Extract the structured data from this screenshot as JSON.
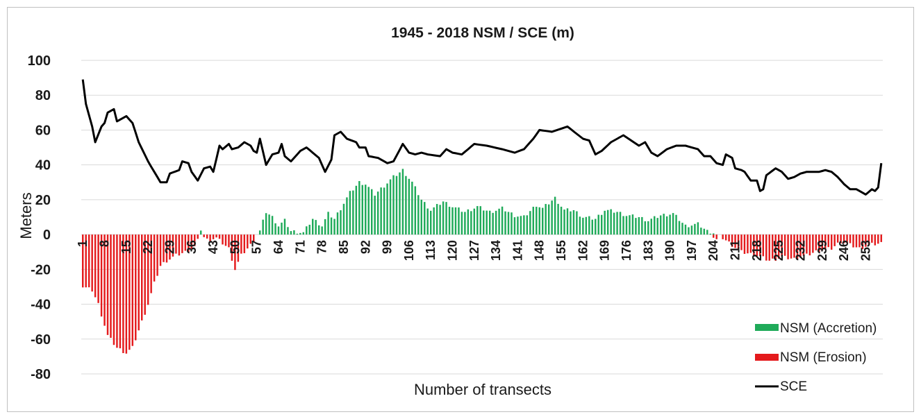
{
  "chart_data": {
    "type": "bar",
    "title": "1945 - 2018 NSM / SCE  (m)",
    "xlabel": "Number of transects",
    "ylabel": "Meters",
    "ylim": [
      -80,
      100
    ],
    "yticks": [
      -80,
      -60,
      -40,
      -20,
      0,
      20,
      40,
      60,
      80,
      100
    ],
    "xticks": [
      1,
      8,
      15,
      22,
      29,
      36,
      43,
      50,
      57,
      64,
      71,
      78,
      85,
      92,
      99,
      106,
      113,
      120,
      127,
      134,
      141,
      148,
      155,
      162,
      169,
      176,
      183,
      190,
      197,
      204,
      211,
      218,
      225,
      232,
      239,
      246,
      253
    ],
    "x_range": [
      1,
      258
    ],
    "grid": true,
    "legend_position": "bottom-right",
    "colors": {
      "accretion": "#1faa59",
      "erosion": "#e41a1c",
      "sce": "#000000",
      "grid": "#d9d9d9"
    },
    "series": [
      {
        "name": "NSM (Accretion)",
        "type": "bar",
        "keypoints": [
          [
            1,
            0
          ],
          [
            38,
            0
          ],
          [
            39,
            3
          ],
          [
            40,
            0
          ],
          [
            57,
            0
          ],
          [
            58,
            2
          ],
          [
            60,
            13
          ],
          [
            62,
            10
          ],
          [
            64,
            5
          ],
          [
            66,
            8
          ],
          [
            68,
            2
          ],
          [
            72,
            1
          ],
          [
            75,
            9
          ],
          [
            78,
            5
          ],
          [
            80,
            12
          ],
          [
            82,
            9
          ],
          [
            85,
            18
          ],
          [
            87,
            24
          ],
          [
            90,
            30
          ],
          [
            92,
            29
          ],
          [
            95,
            23
          ],
          [
            98,
            28
          ],
          [
            101,
            33
          ],
          [
            104,
            37
          ],
          [
            107,
            30
          ],
          [
            110,
            20
          ],
          [
            113,
            14
          ],
          [
            117,
            19
          ],
          [
            120,
            16
          ],
          [
            124,
            13
          ],
          [
            128,
            16
          ],
          [
            132,
            13
          ],
          [
            136,
            15
          ],
          [
            140,
            11
          ],
          [
            143,
            10
          ],
          [
            147,
            17
          ],
          [
            149,
            15
          ],
          [
            153,
            21
          ],
          [
            156,
            14
          ],
          [
            159,
            14
          ],
          [
            162,
            10
          ],
          [
            166,
            9
          ],
          [
            169,
            14
          ],
          [
            173,
            13
          ],
          [
            176,
            11
          ],
          [
            180,
            10
          ],
          [
            183,
            8
          ],
          [
            187,
            11
          ],
          [
            191,
            12
          ],
          [
            195,
            5
          ],
          [
            199,
            6
          ],
          [
            202,
            2
          ],
          [
            204,
            1
          ],
          [
            205,
            0
          ],
          [
            258,
            0
          ]
        ]
      },
      {
        "name": "NSM (Erosion)",
        "type": "bar",
        "keypoints": [
          [
            1,
            -30
          ],
          [
            4,
            -32
          ],
          [
            6,
            -40
          ],
          [
            9,
            -58
          ],
          [
            12,
            -65
          ],
          [
            15,
            -68
          ],
          [
            17,
            -65
          ],
          [
            19,
            -55
          ],
          [
            22,
            -40
          ],
          [
            24,
            -28
          ],
          [
            26,
            -18
          ],
          [
            28,
            -15
          ],
          [
            31,
            -12
          ],
          [
            34,
            -10
          ],
          [
            37,
            -7
          ],
          [
            39,
            0
          ],
          [
            41,
            -3
          ],
          [
            44,
            -2
          ],
          [
            48,
            -8
          ],
          [
            50,
            -20
          ],
          [
            52,
            -12
          ],
          [
            55,
            -6
          ],
          [
            57,
            0
          ],
          [
            203,
            0
          ],
          [
            205,
            -3
          ],
          [
            206,
            0
          ],
          [
            207,
            -2
          ],
          [
            210,
            -6
          ],
          [
            213,
            -10
          ],
          [
            218,
            -12
          ],
          [
            222,
            -15
          ],
          [
            226,
            -13
          ],
          [
            230,
            -14
          ],
          [
            234,
            -12
          ],
          [
            238,
            -9
          ],
          [
            242,
            -8
          ],
          [
            245,
            -4
          ],
          [
            248,
            -6
          ],
          [
            251,
            -8
          ],
          [
            254,
            -6
          ],
          [
            258,
            -5
          ]
        ]
      },
      {
        "name": "SCE",
        "type": "line",
        "keypoints": [
          [
            1,
            89
          ],
          [
            2,
            75
          ],
          [
            4,
            62
          ],
          [
            5,
            53
          ],
          [
            7,
            62
          ],
          [
            8,
            64
          ],
          [
            9,
            70
          ],
          [
            11,
            72
          ],
          [
            12,
            65
          ],
          [
            15,
            68
          ],
          [
            17,
            64
          ],
          [
            19,
            53
          ],
          [
            22,
            42
          ],
          [
            25,
            33
          ],
          [
            26,
            30
          ],
          [
            28,
            30
          ],
          [
            29,
            35
          ],
          [
            32,
            37
          ],
          [
            33,
            42
          ],
          [
            35,
            41
          ],
          [
            36,
            36
          ],
          [
            38,
            31
          ],
          [
            40,
            38
          ],
          [
            42,
            39
          ],
          [
            43,
            36
          ],
          [
            45,
            51
          ],
          [
            46,
            49
          ],
          [
            48,
            52
          ],
          [
            49,
            49
          ],
          [
            51,
            50
          ],
          [
            53,
            53
          ],
          [
            55,
            51
          ],
          [
            56,
            48
          ],
          [
            57,
            47
          ],
          [
            58,
            55
          ],
          [
            60,
            40
          ],
          [
            62,
            46
          ],
          [
            64,
            47
          ],
          [
            65,
            52
          ],
          [
            66,
            45
          ],
          [
            68,
            42
          ],
          [
            71,
            48
          ],
          [
            73,
            50
          ],
          [
            77,
            44
          ],
          [
            79,
            36
          ],
          [
            81,
            43
          ],
          [
            82,
            57
          ],
          [
            84,
            59
          ],
          [
            86,
            55
          ],
          [
            89,
            53
          ],
          [
            90,
            50
          ],
          [
            92,
            50
          ],
          [
            93,
            45
          ],
          [
            96,
            44
          ],
          [
            99,
            41
          ],
          [
            101,
            42
          ],
          [
            104,
            52
          ],
          [
            106,
            47
          ],
          [
            108,
            46
          ],
          [
            110,
            47
          ],
          [
            112,
            46
          ],
          [
            116,
            45
          ],
          [
            118,
            49
          ],
          [
            120,
            47
          ],
          [
            123,
            46
          ],
          [
            127,
            52
          ],
          [
            131,
            51
          ],
          [
            136,
            49
          ],
          [
            140,
            47
          ],
          [
            143,
            49
          ],
          [
            146,
            55
          ],
          [
            148,
            60
          ],
          [
            152,
            59
          ],
          [
            157,
            62
          ],
          [
            162,
            55
          ],
          [
            164,
            54
          ],
          [
            166,
            46
          ],
          [
            168,
            48
          ],
          [
            171,
            53
          ],
          [
            175,
            57
          ],
          [
            180,
            51
          ],
          [
            182,
            53
          ],
          [
            184,
            47
          ],
          [
            186,
            45
          ],
          [
            189,
            49
          ],
          [
            192,
            51
          ],
          [
            195,
            51
          ],
          [
            199,
            49
          ],
          [
            201,
            45
          ],
          [
            203,
            45
          ],
          [
            205,
            41
          ],
          [
            207,
            40
          ],
          [
            208,
            46
          ],
          [
            210,
            44
          ],
          [
            211,
            38
          ],
          [
            213,
            37
          ],
          [
            214,
            36
          ],
          [
            216,
            31
          ],
          [
            218,
            31
          ],
          [
            219,
            25
          ],
          [
            220,
            26
          ],
          [
            221,
            34
          ],
          [
            224,
            38
          ],
          [
            226,
            36
          ],
          [
            228,
            32
          ],
          [
            230,
            33
          ],
          [
            232,
            35
          ],
          [
            234,
            36
          ],
          [
            238,
            36
          ],
          [
            240,
            37
          ],
          [
            242,
            36
          ],
          [
            244,
            33
          ],
          [
            246,
            29
          ],
          [
            248,
            26
          ],
          [
            250,
            26
          ],
          [
            252,
            24
          ],
          [
            253,
            23
          ],
          [
            255,
            26
          ],
          [
            256,
            25
          ],
          [
            257,
            27
          ],
          [
            258,
            41
          ]
        ]
      }
    ],
    "legend": [
      {
        "key": "accretion",
        "label": "NSM (Accretion)"
      },
      {
        "key": "erosion",
        "label": "NSM (Erosion)"
      },
      {
        "key": "sce",
        "label": "SCE"
      }
    ]
  }
}
